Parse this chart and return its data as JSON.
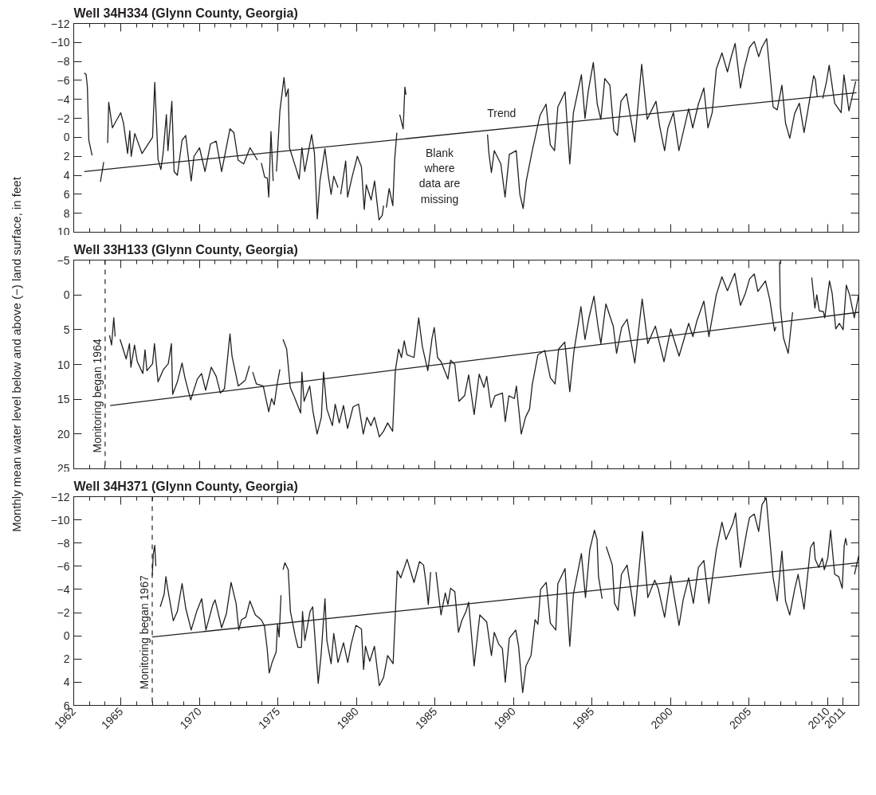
{
  "chart_data": [
    {
      "type": "line",
      "title": "Well 34H334 (Glynn County, Georgia)",
      "xlim": [
        1962,
        2012
      ],
      "xticks": [
        1962,
        1965,
        1970,
        1975,
        1980,
        1985,
        1990,
        1995,
        2000,
        2005,
        2010,
        2011
      ],
      "ylim": [
        10,
        -12
      ],
      "yticks": [
        {
          "value": -12,
          "label": "−12"
        },
        {
          "value": -10,
          "label": "−10"
        },
        {
          "value": -8,
          "label": "−8"
        },
        {
          "value": -6,
          "label": "−6"
        },
        {
          "value": -4,
          "label": "−4"
        },
        {
          "value": -2,
          "label": "−2"
        },
        0,
        2,
        4,
        6,
        8,
        10
      ],
      "tick_labels": "y",
      "series": [
        {
          "color": "#231f20",
          "x": [
            1962.67,
            1962.79,
            1962.87,
            1962.96,
            1963.17,
            1963.4,
            1963.7,
            1963.91,
            1964.0,
            1964.16,
            1964.23,
            1964.46,
            1964.99,
            1965.17,
            1965.43,
            1965.57,
            1965.66,
            1965.89,
            1966.35,
            1967.02,
            1967.16,
            1967.37,
            1967.55,
            1967.69,
            1967.9,
            1968.0,
            1968.25,
            1968.39,
            1968.6,
            1968.9,
            1969.13,
            1969.48,
            1969.66,
            1970.01,
            1970.36,
            1970.71,
            1971.07,
            1971.42,
            1971.95,
            1972.2,
            1972.47,
            1972.82,
            1973.23,
            1973.7,
            1973.8,
            1973.95,
            1974.16,
            1974.33,
            1974.42,
            1974.56,
            1974.7,
            1974.8,
            1974.91,
            1975.13,
            1975.39,
            1975.51,
            1975.66,
            1975.74,
            1976.18,
            1976.36,
            1976.53,
            1976.71,
            1977.15,
            1977.33,
            1977.51,
            1977.68,
            1978.0,
            1978.21,
            1978.39,
            1978.56,
            1978.83,
            1978.9,
            1979.0,
            1979.32,
            1979.44,
            1979.71,
            1980.06,
            1980.32,
            1980.5,
            1980.63,
            1980.94,
            1981.16,
            1981.44,
            1981.65,
            1981.73,
            1981.8,
            1981.91,
            1982.09,
            1982.32,
            1982.44,
            1982.58,
            1982.7,
            1982.76,
            1982.98,
            1983.09,
            1983.16,
            1985.0,
            1988.35,
            1988.44,
            1988.6,
            1988.78,
            1989.2,
            1989.47,
            1989.74,
            1990.18,
            1990.41,
            1990.62,
            1990.82,
            1991.2,
            1991.69,
            1992.08,
            1992.35,
            1992.62,
            1992.83,
            1993.29,
            1993.59,
            1993.82,
            1994.33,
            1994.56,
            1994.77,
            1995.09,
            1995.34,
            1995.57,
            1995.82,
            1996.14,
            1996.4,
            1996.63,
            1996.85,
            1997.2,
            1997.73,
            1998.17,
            1998.52,
            1999.08,
            1999.31,
            1999.63,
            1999.84,
            2000.19,
            2000.54,
            2001.16,
            2001.42,
            2001.78,
            2002.13,
            2002.39,
            2002.66,
            2002.92,
            2003.28,
            2003.63,
            2003.89,
            2004.12,
            2004.46,
            2004.69,
            2005.04,
            2005.34,
            2005.62,
            2005.83,
            2006.13,
            2006.54,
            2006.8,
            2007.1,
            2007.33,
            2007.6,
            2007.91,
            2008.21,
            2008.51,
            2008.82,
            2009.12,
            2009.23,
            2009.35,
            2009.5,
            2009.7,
            2009.93,
            2010.11,
            2010.46,
            2010.87,
            2011.05,
            2011.37,
            2011.8
          ],
          "values": [
            -6.8,
            -6.6,
            -5.3,
            0.3,
            1.9,
            null,
            4.7,
            2.6,
            null,
            0.6,
            -3.7,
            -1.0,
            -2.6,
            -1.5,
            1.7,
            -0.7,
            2.0,
            -0.4,
            1.7,
            0,
            -5.8,
            2.3,
            3.4,
            1.7,
            -2.4,
            1.4,
            -3.8,
            3.6,
            4.0,
            0.3,
            -0.2,
            4.6,
            2.0,
            1.1,
            3.6,
            0.7,
            0.4,
            3.6,
            -0.9,
            -0.5,
            2.4,
            2.8,
            1.1,
            2.4,
            null,
            2.7,
            4.2,
            4.3,
            6.3,
            -0.6,
            4.6,
            null,
            3.6,
            -2.8,
            -6.3,
            -4.3,
            -5.1,
            1.1,
            3.4,
            4.4,
            1.1,
            3.6,
            -0.3,
            1.7,
            8.6,
            4.6,
            1.2,
            4.0,
            6.0,
            4.1,
            5.3,
            null,
            6.0,
            2.5,
            6.3,
            4.3,
            2.0,
            3.1,
            7.6,
            5.0,
            6.6,
            4.6,
            8.7,
            8.2,
            7.2,
            null,
            7.4,
            5.4,
            7.2,
            2.3,
            -0.5,
            null,
            -2.4,
            -0.9,
            -5.3,
            -4.5,
            null,
            -0.3,
            1.7,
            3.7,
            1.4,
            2.8,
            6.3,
            1.8,
            1.4,
            6.0,
            7.5,
            4.6,
            1.4,
            -2.3,
            -3.5,
            0.8,
            1.4,
            -3.2,
            -4.8,
            2.8,
            -2.6,
            -6.6,
            -2.0,
            -4.9,
            -7.9,
            -3.5,
            -1.9,
            -6.2,
            -5.5,
            -0.7,
            -0.2,
            -3.8,
            -4.6,
            0.5,
            -7.7,
            -1.9,
            -3.8,
            -1.2,
            1.4,
            -1.0,
            -2.6,
            1.4,
            -3.0,
            -1.0,
            -3.5,
            -5.2,
            -1.0,
            -2.6,
            -7.2,
            -8.9,
            -6.9,
            -8.6,
            -9.9,
            -5.2,
            -7.2,
            -9.5,
            -10.1,
            -8.5,
            -9.5,
            -10.4,
            -3.2,
            -2.9,
            -5.5,
            -1.5,
            0.1,
            -2.5,
            -3.6,
            -0.5,
            -3.5,
            -6.5,
            -6.1,
            -4.3,
            null,
            -4.1,
            -5.8,
            -7.6,
            -3.6,
            -2.6,
            -6.6,
            -2.8,
            -5.9
          ]
        },
        {
          "color": "#231f20",
          "x": [
            1962.67,
            2011.85
          ],
          "values": [
            3.6,
            -4.7
          ]
        }
      ],
      "annotations": [
        "Trend",
        "Blank where data are missing"
      ]
    },
    {
      "type": "line",
      "title": "Well 33H133 (Glynn County, Georgia)",
      "ylabel": "Monthly mean water level below and above (−) land surface, in feet",
      "xlim": [
        1962,
        2012
      ],
      "xticks": [
        1962,
        1965,
        1970,
        1975,
        1980,
        1985,
        1990,
        1995,
        2000,
        2005,
        2010,
        2011
      ],
      "ylim": [
        25,
        -5
      ],
      "yticks": [
        {
          "value": -5,
          "label": "−5"
        },
        0,
        5,
        10,
        15,
        20,
        25
      ],
      "tick_labels": "y",
      "series": [
        {
          "color": "#231f20",
          "x": [
            1964.28,
            1964.41,
            1964.55,
            1964.64,
            1964.8,
            1964.95,
            1965.34,
            1965.55,
            1965.64,
            1965.87,
            1966.05,
            1966.4,
            1966.54,
            1966.66,
            1967.02,
            1967.14,
            1967.37,
            1967.72,
            1968.02,
            1968.22,
            1968.3,
            1968.6,
            1968.9,
            1969.08,
            1969.45,
            1969.87,
            1970.14,
            1970.4,
            1970.76,
            1971.07,
            1971.34,
            1971.6,
            1971.95,
            1972.08,
            1972.48,
            1972.92,
            1973.19,
            1973.3,
            1973.4,
            1973.63,
            1974.07,
            1974.42,
            1974.6,
            1974.77,
            1974.95,
            1975.13,
            1975.2,
            1975.33,
            1975.56,
            1975.79,
            1976.09,
            1976.45,
            1976.53,
            1976.67,
            1977.03,
            1977.24,
            1977.5,
            1977.77,
            1977.91,
            1978.12,
            1978.47,
            1978.65,
            1978.91,
            1979.18,
            1979.44,
            1979.79,
            1980.14,
            1980.44,
            1980.67,
            1980.93,
            1981.15,
            1981.46,
            1981.73,
            1981.99,
            1982.31,
            1982.48,
            1982.69,
            1982.87,
            1983.05,
            1983.22,
            1983.67,
            1983.97,
            1984.2,
            1984.55,
            1984.82,
            1984.96,
            1985.17,
            1985.39,
            1985.83,
            1986.0,
            1986.27,
            1986.53,
            1986.89,
            1987.15,
            1987.5,
            1987.82,
            1988.12,
            1988.3,
            1988.57,
            1988.83,
            1989.3,
            1989.48,
            1989.71,
            1990.06,
            1990.19,
            1990.5,
            1990.77,
            1991.03,
            1991.2,
            1991.56,
            1992.0,
            1992.35,
            1992.65,
            1992.88,
            1993.27,
            1993.59,
            1993.85,
            1994.3,
            1994.56,
            1994.81,
            1995.13,
            1995.4,
            1995.57,
            1995.89,
            1996.36,
            1996.57,
            1996.89,
            1997.24,
            1997.73,
            1998.2,
            1998.56,
            1999.04,
            1999.59,
            2000.02,
            2000.55,
            2001.16,
            2001.43,
            2001.69,
            2002.13,
            2002.45,
            2002.92,
            2003.28,
            2003.63,
            2004.1,
            2004.46,
            2004.77,
            2005.04,
            2005.34,
            2005.57,
            2006.05,
            2006.33,
            2006.63,
            2006.72,
            2006.85,
            2006.95,
            2007.0,
            2007.2,
            2007.5,
            2007.78,
            2008.5,
            2009.0,
            2009.2,
            2009.32,
            2009.48,
            2009.74,
            2009.83,
            2010.13,
            2010.3,
            2010.53,
            2010.76,
            2011.0,
            2011.2,
            2011.41,
            2011.71,
            2011.99
          ],
          "values": [
            5.8,
            7.2,
            3.3,
            6.0,
            null,
            6.4,
            9.2,
            7.0,
            10.4,
            7.2,
            9.6,
            11.3,
            7.9,
            10.9,
            9.9,
            7.0,
            12.5,
            10.7,
            9.9,
            7.0,
            14.3,
            12.5,
            9.8,
            11.9,
            15.1,
            12.1,
            11.3,
            13.7,
            10.4,
            11.7,
            14.1,
            13.5,
            5.6,
            8.8,
            13.1,
            12.3,
            10.2,
            null,
            11.1,
            12.8,
            13.1,
            16.8,
            14.9,
            15.8,
            12.9,
            10.7,
            null,
            6.4,
            7.8,
            13.3,
            14.9,
            17.0,
            11.1,
            15.3,
            13.1,
            16.8,
            20.0,
            17.6,
            11.1,
            16.4,
            18.8,
            15.7,
            18.4,
            15.9,
            19.2,
            16.1,
            15.7,
            20.0,
            17.6,
            18.8,
            17.6,
            20.4,
            19.6,
            18.4,
            19.6,
            10.9,
            7.8,
            9.0,
            6.6,
            8.6,
            9.0,
            3.3,
            7.4,
            10.9,
            6.2,
            4.7,
            9.0,
            9.6,
            12.1,
            9.4,
            10.0,
            15.3,
            14.5,
            11.5,
            17.2,
            11.4,
            13.3,
            11.7,
            16.2,
            14.5,
            14.1,
            18.2,
            14.5,
            14.9,
            13.1,
            20.0,
            17.6,
            16.4,
            12.9,
            8.6,
            8.0,
            11.9,
            12.8,
            7.8,
            6.8,
            13.9,
            8.2,
            1.7,
            6.4,
            3.3,
            0.2,
            4.7,
            7.0,
            1.3,
            4.5,
            8.4,
            4.7,
            3.5,
            9.8,
            0.6,
            7.0,
            4.5,
            9.6,
            4.9,
            8.8,
            4.1,
            6.0,
            3.7,
            0.9,
            6.0,
            0.0,
            -2.6,
            -0.6,
            -3.1,
            1.5,
            -0.2,
            -2.3,
            -3.0,
            -0.5,
            -2.0,
            0.7,
            5.2,
            4.6,
            null,
            -4.8,
            1.7,
            6.2,
            8.4,
            2.5,
            null,
            -2.5,
            1.9,
            0,
            2.3,
            2.4,
            3.3,
            -2.0,
            -0.2,
            4.9,
            4.1,
            5.0,
            -1.4,
            0,
            3.3,
            0.0
          ]
        },
        {
          "color": "#231f20",
          "x": [
            1964.32,
            2011.99
          ],
          "values": [
            15.9,
            2.5
          ]
        }
      ],
      "ref_lines": [
        {
          "axis": "x",
          "value": 1964,
          "label": "Monitoring began 1964",
          "line_style": "dashed",
          "color": "#231f20"
        }
      ]
    },
    {
      "type": "line",
      "title": "Well 34H371 (Glynn County, Georgia)",
      "xlim": [
        1962,
        2012
      ],
      "xticks": [
        1962,
        1965,
        1970,
        1975,
        1980,
        1985,
        1990,
        1995,
        2000,
        2005,
        2010,
        2011
      ],
      "ylim": [
        6,
        -12
      ],
      "yticks": [
        {
          "value": -12,
          "label": "−12"
        },
        {
          "value": -10,
          "label": "−10"
        },
        {
          "value": -8,
          "label": "−8"
        },
        {
          "value": -6,
          "label": "−6"
        },
        {
          "value": -4,
          "label": "−4"
        },
        {
          "value": -2,
          "label": "−2"
        },
        0,
        2,
        4,
        6
      ],
      "series": [
        {
          "color": "#231f20",
          "x": [
            1967.0,
            1967.07,
            1967.16,
            1967.23,
            1967.4,
            1967.51,
            1967.76,
            1967.87,
            1967.98,
            1968.34,
            1968.6,
            1968.9,
            1969.13,
            1969.48,
            1969.83,
            1970.15,
            1970.42,
            1970.86,
            1971.0,
            1971.42,
            1971.72,
            1972.02,
            1972.34,
            1972.51,
            1972.69,
            1972.96,
            1973.22,
            1973.57,
            1973.93,
            1974.14,
            1974.31,
            1974.45,
            1974.63,
            1974.89,
            1974.98,
            1975.08,
            1975.2,
            1975.27,
            1975.33,
            1975.45,
            1975.66,
            1975.8,
            1976.1,
            1976.28,
            1976.5,
            1976.57,
            1976.72,
            1977.05,
            1977.22,
            1977.57,
            1977.75,
            1978.0,
            1978.12,
            1978.39,
            1978.56,
            1978.83,
            1979.18,
            1979.45,
            1979.67,
            1979.97,
            1980.32,
            1980.46,
            1980.58,
            1980.85,
            1981.15,
            1981.46,
            1981.73,
            1981.99,
            1982.34,
            1982.6,
            1982.83,
            1983.23,
            1983.67,
            1984.02,
            1984.28,
            1984.46,
            1984.58,
            1984.73,
            1984.9,
            1985.07,
            1985.39,
            1985.66,
            1985.83,
            1986.0,
            1986.27,
            1986.5,
            1986.71,
            1986.98,
            1987.15,
            1987.5,
            1987.86,
            1988.3,
            1988.6,
            1988.78,
            1989.06,
            1989.3,
            1989.48,
            1989.74,
            1990.15,
            1990.33,
            1990.59,
            1990.8,
            1991.12,
            1991.38,
            1991.56,
            1991.73,
            1992.09,
            1992.35,
            1992.7,
            1992.83,
            1993.29,
            1993.59,
            1993.82,
            1994.33,
            1994.59,
            1994.86,
            1995.16,
            1995.33,
            1995.42,
            1995.65,
            1995.8,
            1995.91,
            1996.3,
            1996.44,
            1996.67,
            1996.88,
            1997.24,
            1997.73,
            1998.22,
            1998.56,
            1999.0,
            1999.22,
            1999.63,
            2000.02,
            2000.55,
            2000.81,
            2001.16,
            2001.46,
            2001.78,
            2002.13,
            2002.45,
            2002.92,
            2003.28,
            2003.54,
            2003.98,
            2004.15,
            2004.46,
            2004.86,
            2005.04,
            2005.34,
            2005.62,
            2005.83,
            2006.1,
            2006.54,
            2006.8,
            2007.1,
            2007.33,
            2007.6,
            2007.91,
            2008.13,
            2008.51,
            2008.92,
            2009.13,
            2009.22,
            2009.45,
            2009.67,
            2009.8,
            2010.02,
            2010.2,
            2010.46,
            2010.72,
            2010.94,
            2011.07,
            2011.16,
            2011.24,
            2011.5,
            2011.72,
            2011.99
          ],
          "values": [
            -5.2,
            -7.1,
            -7.8,
            -6.0,
            null,
            -2.5,
            -3.6,
            -5.1,
            -4.1,
            -1.3,
            -2.1,
            -4.5,
            -2.4,
            -0.5,
            -2.1,
            -3.2,
            -0.5,
            -2.7,
            -3.1,
            -0.7,
            -1.9,
            -4.6,
            -2.8,
            -0.5,
            -1.4,
            -1.6,
            -3.0,
            -1.8,
            -1.4,
            -0.9,
            1.0,
            3.2,
            2.3,
            1.4,
            -1.0,
            0.1,
            -3.5,
            null,
            -5.7,
            -6.3,
            -5.7,
            -2.1,
            0.0,
            1.0,
            1.0,
            -2.1,
            0.4,
            -2.1,
            -2.5,
            4.1,
            1.7,
            -3.2,
            0.4,
            2.4,
            -0.2,
            2.3,
            0.6,
            2.3,
            0.7,
            -0.9,
            -0.6,
            2.9,
            0.9,
            2.2,
            0.9,
            4.3,
            3.6,
            1.7,
            2.4,
            -5.6,
            -5.0,
            -6.6,
            -4.6,
            -6.4,
            -6.1,
            -4.3,
            -2.7,
            -5.5,
            null,
            -5.5,
            -1.8,
            -3.7,
            -2.7,
            -4.1,
            -3.8,
            -0.3,
            -1.3,
            -2.1,
            -2.9,
            2.6,
            -1.8,
            -1.2,
            1.7,
            -0.3,
            0.7,
            1.1,
            4.0,
            0.2,
            -0.5,
            0.9,
            4.9,
            2.6,
            1.7,
            -1.4,
            -1.0,
            -4.0,
            -4.6,
            -1.1,
            -0.5,
            -4.5,
            -5.8,
            0.9,
            -3.6,
            -7.1,
            -3.3,
            -7.4,
            -9.1,
            -8.3,
            -5.1,
            -3.2,
            null,
            -7.7,
            -6.1,
            -2.8,
            -2.2,
            -5.3,
            -6.1,
            -1.7,
            -9.0,
            -3.3,
            -4.8,
            -4.1,
            -1.6,
            -5.2,
            -0.9,
            -3.1,
            -5.0,
            -2.8,
            -5.9,
            -6.5,
            -2.8,
            -7.4,
            -9.8,
            -8.3,
            -9.7,
            -10.6,
            -5.9,
            -9.0,
            -10.2,
            -10.5,
            -9.0,
            -11.3,
            -11.9,
            -5.0,
            -3.0,
            -7.3,
            -3.0,
            -1.8,
            -4.0,
            -5.3,
            -2.3,
            -7.6,
            -8.1,
            -6.6,
            -5.9,
            -6.7,
            -5.7,
            -6.7,
            -9.1,
            -5.3,
            -5.1,
            -4.1,
            -7.8,
            -8.4,
            -7.8,
            null,
            -5.3,
            -6.9
          ]
        },
        {
          "color": "#231f20",
          "x": [
            1967.0,
            2011.99
          ],
          "values": [
            0.1,
            -6.3
          ]
        }
      ],
      "ref_lines": [
        {
          "axis": "x",
          "value": 1967,
          "label": "Monitoring began 1967",
          "line_style": "dashed",
          "color": "#231f20"
        }
      ]
    }
  ]
}
